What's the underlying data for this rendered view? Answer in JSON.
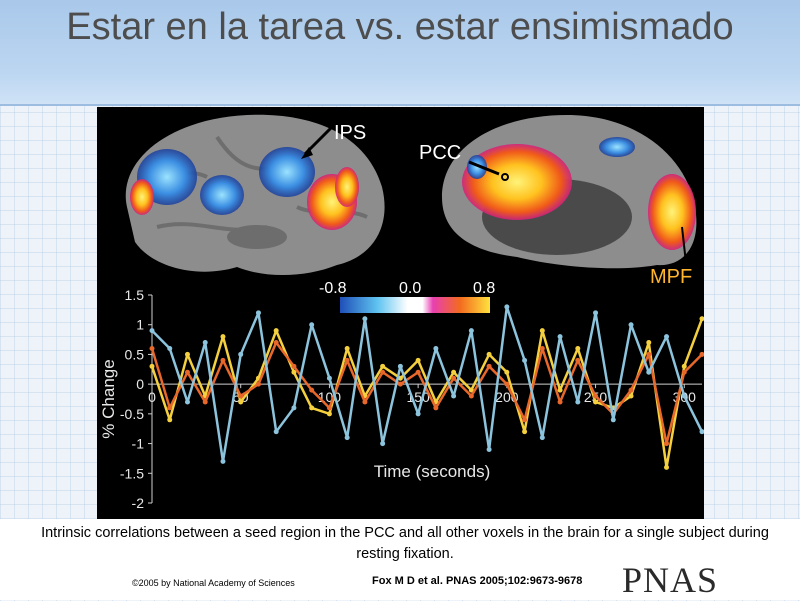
{
  "slide": {
    "title": "Estar en la tarea vs. estar ensimismado"
  },
  "figure": {
    "labels": {
      "ips": "IPS",
      "pcc": "PCC",
      "mpf": "MPF"
    },
    "colorbar": {
      "min_label": "-0.8",
      "mid_label": "0.0",
      "max_label": "0.8"
    }
  },
  "chart_data": {
    "type": "line",
    "xlabel": "Time (seconds)",
    "ylabel": "% Change",
    "xlim": [
      0,
      310
    ],
    "ylim": [
      -2,
      1.5
    ],
    "xticks": [
      "0",
      "50",
      "100",
      "150",
      "200",
      "250",
      "300"
    ],
    "yticks": [
      "1.5",
      "1",
      "0.5",
      "0",
      "-0.5",
      "-1",
      "-1.5",
      "-2"
    ],
    "grid": false,
    "series": [
      {
        "color": "#f4d03f",
        "x": [
          0,
          10,
          20,
          30,
          40,
          50,
          60,
          70,
          80,
          90,
          100,
          110,
          120,
          130,
          140,
          150,
          160,
          170,
          180,
          190,
          200,
          210,
          220,
          230,
          240,
          250,
          260,
          270,
          280,
          290,
          300,
          310
        ],
        "values": [
          0.3,
          -0.6,
          0.5,
          -0.2,
          0.8,
          -0.3,
          0.1,
          0.9,
          0.2,
          -0.4,
          -0.5,
          0.6,
          -0.2,
          0.3,
          0.1,
          0.4,
          -0.3,
          0.2,
          -0.1,
          0.5,
          0.2,
          -0.8,
          0.9,
          -0.1,
          0.6,
          -0.3,
          -0.4,
          -0.2,
          0.7,
          -1.4,
          0.3,
          1.1
        ]
      },
      {
        "color": "#e8672b",
        "x": [
          0,
          10,
          20,
          30,
          40,
          50,
          60,
          70,
          80,
          90,
          100,
          110,
          120,
          130,
          140,
          150,
          160,
          170,
          180,
          190,
          200,
          210,
          220,
          230,
          240,
          250,
          260,
          270,
          280,
          290,
          300,
          310
        ],
        "values": [
          0.6,
          -0.4,
          0.2,
          -0.3,
          0.4,
          -0.2,
          0.0,
          0.7,
          0.3,
          -0.1,
          -0.4,
          0.4,
          -0.3,
          0.2,
          0.0,
          0.2,
          -0.4,
          0.1,
          -0.2,
          0.3,
          0.0,
          -0.6,
          0.6,
          -0.3,
          0.4,
          -0.2,
          -0.5,
          -0.1,
          0.5,
          -1.0,
          0.2,
          0.5
        ]
      },
      {
        "color": "#8cc4dd",
        "x": [
          0,
          10,
          20,
          30,
          40,
          50,
          60,
          70,
          80,
          90,
          100,
          110,
          120,
          130,
          140,
          150,
          160,
          170,
          180,
          190,
          200,
          210,
          220,
          230,
          240,
          250,
          260,
          270,
          280,
          290,
          300,
          310
        ],
        "values": [
          0.9,
          0.6,
          -0.3,
          0.7,
          -1.3,
          0.5,
          1.2,
          -0.8,
          -0.4,
          1.0,
          0.1,
          -0.9,
          1.1,
          -1.0,
          0.3,
          -0.5,
          0.6,
          -0.2,
          0.9,
          -1.1,
          1.3,
          0.4,
          -0.9,
          0.8,
          -0.3,
          1.2,
          -0.6,
          1.0,
          0.2,
          0.8,
          -0.2,
          -0.8
        ]
      }
    ]
  },
  "caption": {
    "text": "Intrinsic correlations between a seed region in the PCC and all other voxels in the brain for a single subject during resting fixation.",
    "copyright": "©2005 by National Academy of Sciences",
    "citation": "Fox M D et al. PNAS 2005;102:9673-9678",
    "publisher_logo": "PNAS"
  },
  "colors": {
    "title_band": "#b3cff0",
    "figure_bg": "#000000",
    "positive_map": "#ffd23f",
    "negative_map": "#3f8fe0"
  }
}
